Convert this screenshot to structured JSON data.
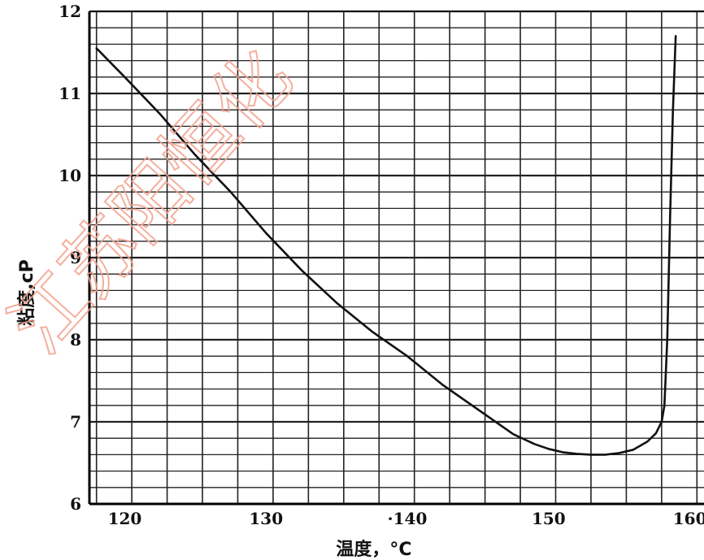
{
  "chart_data": {
    "type": "line",
    "xlabel": "温度，°C",
    "ylabel": "粘度,cP",
    "xlim": [
      117.5,
      161
    ],
    "ylim": [
      6,
      12
    ],
    "x_ticks": [
      120,
      130,
      140,
      150,
      160
    ],
    "x_tick_labels": [
      "120",
      "130",
      "·140",
      "150",
      "160"
    ],
    "y_ticks": [
      6,
      7,
      8,
      9,
      10,
      11,
      12
    ],
    "y_tick_labels": [
      "6",
      "7",
      "8",
      "9",
      "10",
      "11",
      "12"
    ],
    "grid": true,
    "series": [
      {
        "color": "#111111",
        "x": [
          118,
          120,
          122.5,
          125,
          127.5,
          130,
          132.5,
          135,
          137.5,
          140,
          142.5,
          145,
          147.5,
          149,
          150,
          151,
          152,
          153,
          154,
          155,
          156,
          157,
          157.6,
          158.0,
          158.2,
          158.4,
          158.6,
          158.8,
          159.0
        ],
        "y": [
          11.55,
          11.2,
          10.75,
          10.25,
          9.8,
          9.3,
          8.85,
          8.45,
          8.1,
          7.8,
          7.45,
          7.15,
          6.85,
          6.73,
          6.67,
          6.63,
          6.61,
          6.6,
          6.6,
          6.62,
          6.66,
          6.76,
          6.86,
          7.0,
          7.2,
          8.0,
          9.5,
          10.8,
          11.7
        ]
      }
    ]
  },
  "watermark": {
    "text": "江苏阳恒化"
  }
}
